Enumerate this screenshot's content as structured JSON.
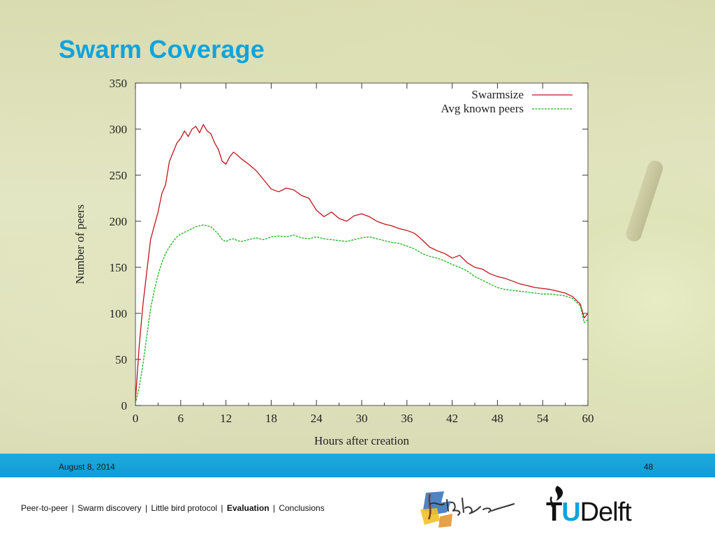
{
  "slide": {
    "title": "Swarm Coverage",
    "date": "August 8, 2014",
    "page_number": "48"
  },
  "breadcrumb": [
    {
      "label": "Peer-to-peer",
      "active": false
    },
    {
      "label": "Swarm discovery",
      "active": false
    },
    {
      "label": "Little bird protocol",
      "active": false
    },
    {
      "label": "Evaluation",
      "active": true
    },
    {
      "label": "Conclusions",
      "active": false
    }
  ],
  "logos": {
    "tribler": "Tribler",
    "tudelft": "TUDelft"
  },
  "colors": {
    "title": "#10a3dc",
    "footer_bar": "#0f9bd6",
    "swarmsize": "#c0141b",
    "known_peers": "#18b418"
  },
  "chart_data": {
    "type": "line",
    "title": "",
    "xlabel": "Hours after creation",
    "ylabel": "Number of peers",
    "xlim": [
      0,
      60
    ],
    "ylim": [
      0,
      350
    ],
    "xticks": [
      0,
      6,
      12,
      18,
      24,
      30,
      36,
      42,
      48,
      54,
      60
    ],
    "yticks": [
      0,
      50,
      100,
      150,
      200,
      250,
      300,
      350
    ],
    "grid": false,
    "legend_position": "top-right",
    "series": [
      {
        "name": "Swarmsize",
        "color": "#c0141b",
        "x": [
          0,
          0.5,
          1,
          1.5,
          2,
          2.5,
          3,
          3.5,
          4,
          4.5,
          5,
          5.5,
          6,
          6.5,
          7,
          7.5,
          8,
          8.5,
          9,
          9.5,
          10,
          10.5,
          11,
          11.5,
          12,
          12.5,
          13,
          13.5,
          14,
          15,
          16,
          17,
          18,
          19,
          20,
          21,
          22,
          23,
          24,
          25,
          26,
          27,
          28,
          29,
          30,
          31,
          32,
          33,
          34,
          35,
          36,
          37,
          38,
          39,
          40,
          41,
          42,
          43,
          44,
          45,
          46,
          47,
          48,
          49,
          50,
          51,
          52,
          53,
          54,
          55,
          56,
          57,
          58,
          59,
          59.5,
          60
        ],
        "y": [
          5,
          65,
          110,
          145,
          180,
          195,
          210,
          230,
          240,
          265,
          275,
          285,
          290,
          298,
          292,
          300,
          303,
          296,
          305,
          298,
          295,
          285,
          278,
          265,
          262,
          270,
          275,
          272,
          268,
          262,
          255,
          245,
          235,
          232,
          236,
          234,
          228,
          225,
          212,
          205,
          210,
          203,
          200,
          206,
          208,
          205,
          200,
          197,
          195,
          192,
          190,
          187,
          180,
          172,
          168,
          165,
          160,
          163,
          155,
          150,
          148,
          143,
          140,
          138,
          135,
          132,
          130,
          128,
          127,
          126,
          124,
          122,
          118,
          110,
          95,
          100
        ]
      },
      {
        "name": "Avg known peers",
        "color": "#18b418",
        "x": [
          0,
          0.5,
          1,
          1.5,
          2,
          2.5,
          3,
          3.5,
          4,
          4.5,
          5,
          5.5,
          6,
          6.5,
          7,
          7.5,
          8,
          8.5,
          9,
          9.5,
          10,
          10.5,
          11,
          11.5,
          12,
          12.5,
          13,
          13.5,
          14,
          15,
          16,
          17,
          18,
          19,
          20,
          21,
          22,
          23,
          24,
          25,
          26,
          27,
          28,
          29,
          30,
          31,
          32,
          33,
          34,
          35,
          36,
          37,
          38,
          39,
          40,
          41,
          42,
          43,
          44,
          45,
          46,
          47,
          48,
          49,
          50,
          51,
          52,
          53,
          54,
          55,
          56,
          57,
          58,
          59,
          59.5,
          60
        ],
        "y": [
          2,
          20,
          45,
          75,
          105,
          125,
          142,
          155,
          165,
          172,
          178,
          183,
          186,
          188,
          190,
          192,
          194,
          195,
          196,
          195,
          194,
          190,
          186,
          180,
          178,
          180,
          181,
          179,
          178,
          180,
          182,
          180,
          183,
          184,
          183,
          185,
          182,
          181,
          183,
          181,
          180,
          179,
          178,
          180,
          182,
          183,
          181,
          179,
          177,
          176,
          173,
          170,
          165,
          162,
          160,
          157,
          153,
          150,
          146,
          140,
          136,
          132,
          128,
          126,
          125,
          124,
          123,
          122,
          121,
          121,
          120,
          119,
          116,
          108,
          90,
          93
        ]
      }
    ]
  }
}
